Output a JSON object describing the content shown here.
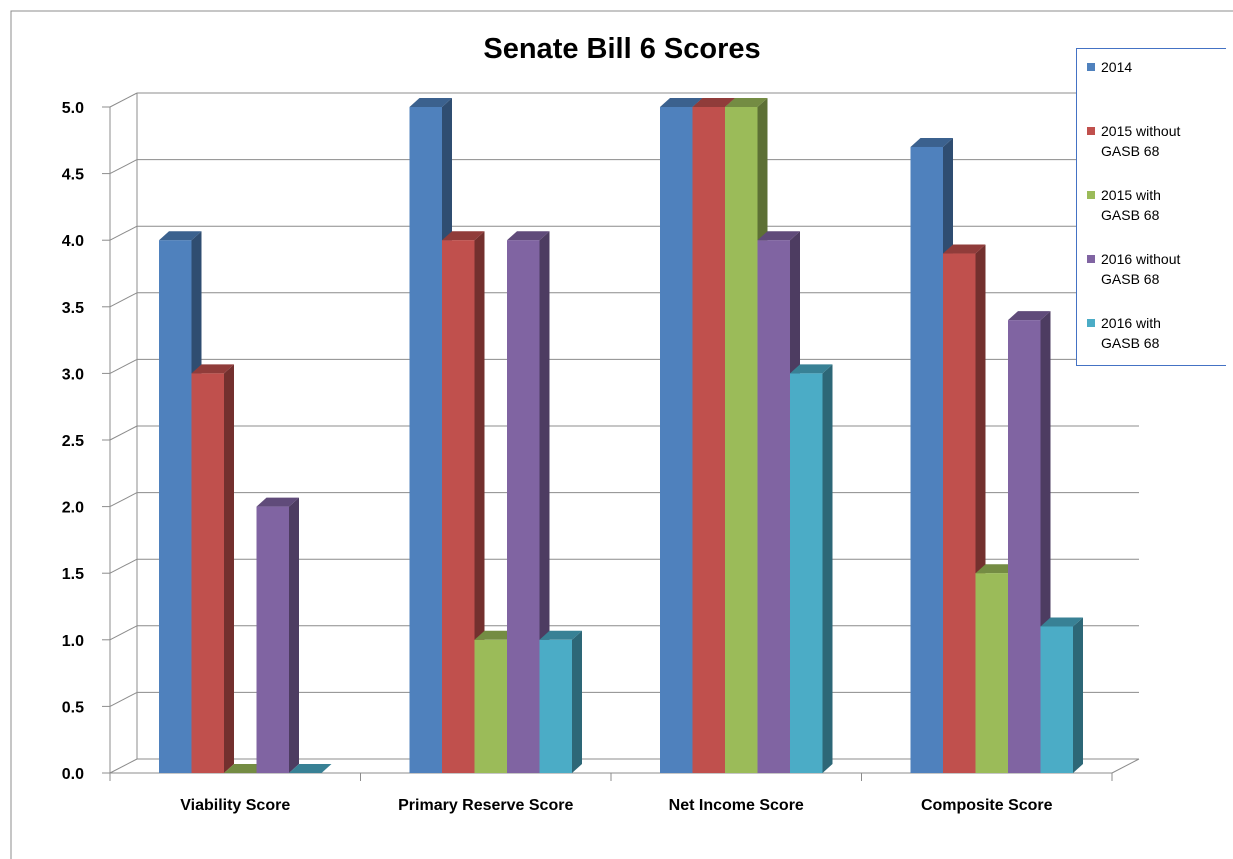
{
  "chart_data": {
    "type": "bar",
    "title": "Senate Bill 6 Scores",
    "xlabel": "",
    "ylabel": "",
    "ylim": [
      0,
      5
    ],
    "yticks": [
      "0.0",
      "0.5",
      "1.0",
      "1.5",
      "2.0",
      "2.5",
      "3.0",
      "3.5",
      "4.0",
      "4.5",
      "5.0"
    ],
    "categories": [
      "Viability Score",
      "Primary Reserve Score",
      "Net Income Score",
      "Composite Score"
    ],
    "grid": true,
    "legend_position": "top-right",
    "series": [
      {
        "name": "2014",
        "color": "#4f81bd",
        "values": [
          4.0,
          5.0,
          5.0,
          4.7
        ]
      },
      {
        "name": "2015 without\nGASB 68",
        "color": "#c0504d",
        "values": [
          3.0,
          4.0,
          5.0,
          3.9
        ]
      },
      {
        "name": "2015 with\nGASB 68",
        "color": "#9bbb59",
        "values": [
          0.0,
          1.0,
          5.0,
          1.5
        ]
      },
      {
        "name": "2016 without\nGASB 68",
        "color": "#8064a2",
        "values": [
          2.0,
          4.0,
          4.0,
          3.4
        ]
      },
      {
        "name": "2016 with\nGASB 68",
        "color": "#4bacc6",
        "values": [
          0.0,
          1.0,
          3.0,
          1.1
        ]
      }
    ]
  }
}
